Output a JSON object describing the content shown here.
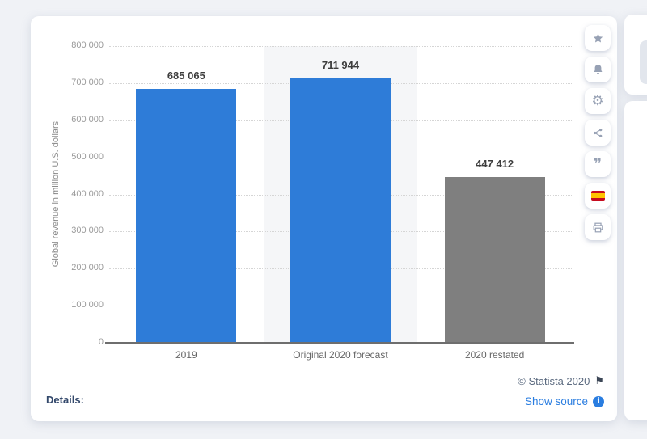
{
  "chart_data": {
    "type": "bar",
    "title": "",
    "categories": [
      "2019",
      "Original 2020 forecast",
      "2020 restated"
    ],
    "values": [
      685065,
      711944,
      447412
    ],
    "value_labels": [
      "685 065",
      "711 944",
      "447 412"
    ],
    "xlabel": "",
    "ylabel": "Global revenue in million U.S. dollars",
    "ylim": [
      0,
      800000
    ],
    "ytick_interval": 100000,
    "ytick_labels": [
      "800 000",
      "700 000",
      "600 000",
      "500 000",
      "400 000",
      "300 000",
      "200 000",
      "100 000",
      "0"
    ],
    "grid": true,
    "legend": false,
    "bar_colors": [
      "#2e7cd8",
      "#2e7cd8",
      "#7f7f7f"
    ],
    "highlighted_category_index": 1,
    "highlight_band_color": "#f5f6f8"
  },
  "toolbar": {
    "buttons": [
      {
        "name": "favorite",
        "icon": "star-icon"
      },
      {
        "name": "notifications",
        "icon": "bell-icon"
      },
      {
        "name": "settings",
        "icon": "gear-icon"
      },
      {
        "name": "share",
        "icon": "share-icon"
      },
      {
        "name": "cite",
        "icon": "quote-icon"
      },
      {
        "name": "language-spanish",
        "icon": "spain-flag-icon"
      },
      {
        "name": "print",
        "icon": "printer-icon"
      }
    ]
  },
  "footer": {
    "details_label": "Details:",
    "copyright": "© Statista 2020",
    "report_flag": "⚑",
    "show_source_label": "Show source",
    "info_glyph": "i"
  },
  "icons": {
    "gear_glyph": "⚙",
    "quote_glyph": "❞"
  },
  "colors": {
    "accent_blue": "#2e7cd8",
    "bar_gray": "#7f7f7f",
    "link_blue": "#2a7de0",
    "page_background": "#f0f2f6"
  }
}
